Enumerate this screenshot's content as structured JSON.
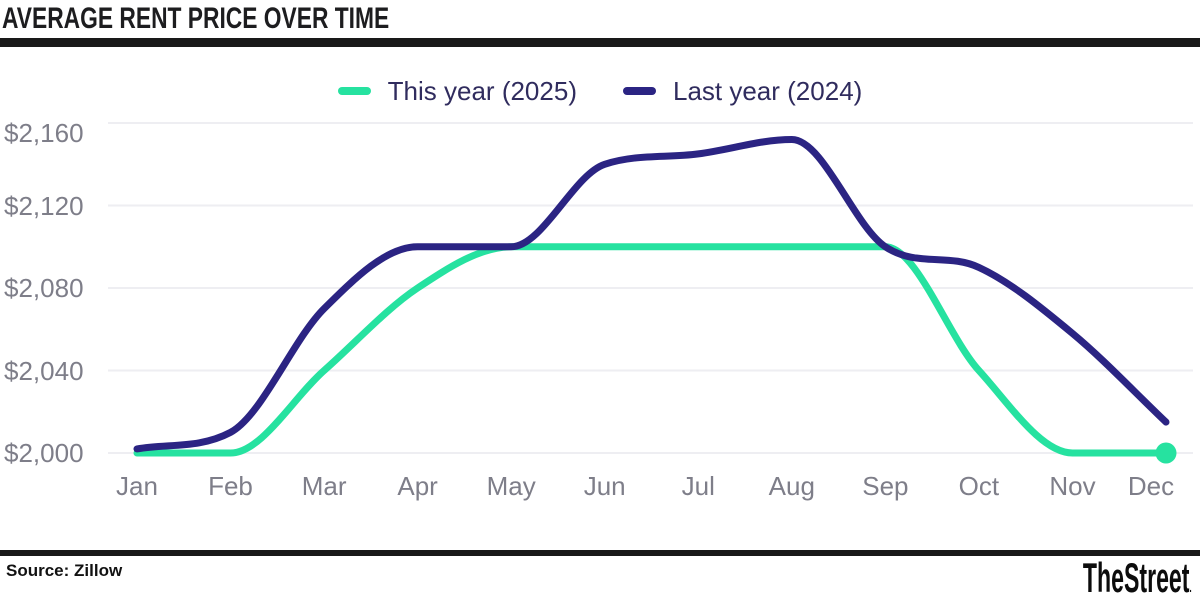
{
  "title": "AVERAGE RENT PRICE OVER TIME",
  "footer": {
    "source": "Source: Zillow",
    "logo": "TheStreet",
    "logo_mark": "."
  },
  "colors": {
    "this_year": "#26E2A0",
    "last_year": "#2B2483",
    "grid": "#EEEEF2",
    "axis_text": "#7E7E89",
    "legend_text": "#302C5E",
    "bar": "#191919"
  },
  "chart_data": {
    "type": "line",
    "title": "AVERAGE RENT PRICE OVER TIME",
    "categories": [
      "Jan",
      "Feb",
      "Mar",
      "Apr",
      "May",
      "Jun",
      "Jul",
      "Aug",
      "Sep",
      "Oct",
      "Nov",
      "Dec"
    ],
    "series": [
      {
        "name": "This year (2025)",
        "color": "#26E2A0",
        "values": [
          2000,
          2000,
          2040,
          2080,
          2100,
          2100,
          2100,
          2100,
          2100,
          2040,
          2000,
          2000
        ],
        "end_dot": true
      },
      {
        "name": "Last year (2024)",
        "color": "#2B2483",
        "values": [
          2002,
          2010,
          2070,
          2100,
          2100,
          2140,
          2145,
          2152,
          2100,
          2090,
          2058,
          2015
        ],
        "end_dot": false
      }
    ],
    "y_ticks": [
      {
        "value": 2000,
        "label": "$2,000"
      },
      {
        "value": 2040,
        "label": "$2,040"
      },
      {
        "value": 2080,
        "label": "$2,080"
      },
      {
        "value": 2120,
        "label": "$2,120"
      },
      {
        "value": 2160,
        "label": "$2,160"
      }
    ],
    "ylim": [
      2000,
      2160
    ],
    "grid": "horizontal",
    "legend_position": "top-center",
    "source": "Zillow"
  }
}
